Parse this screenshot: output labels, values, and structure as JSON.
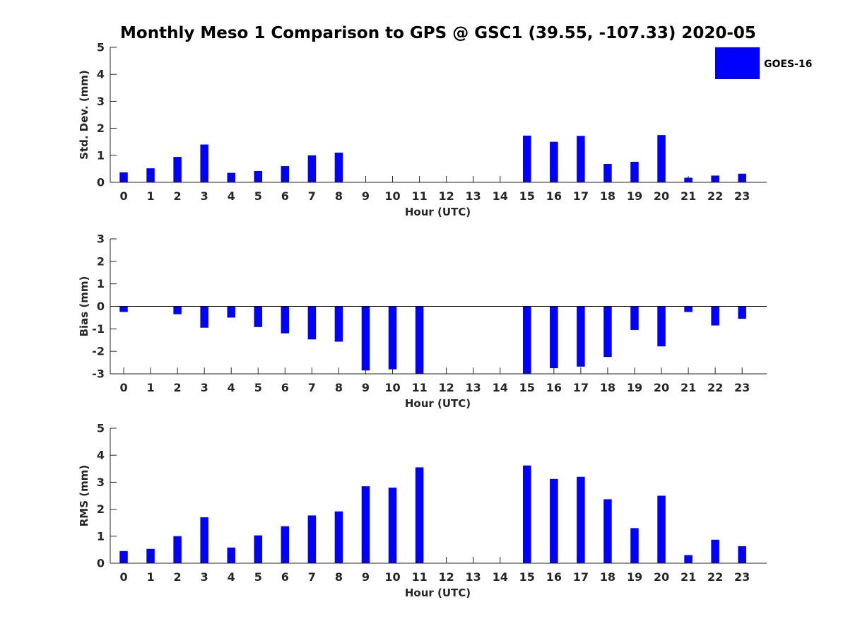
{
  "title": "Monthly Meso 1 Comparison to GPS @ GSC1 (39.55, -107.33) 2020-05",
  "legend": {
    "label": "GOES-16",
    "color": "#0000ff",
    "placement": "top-right"
  },
  "chart_data": [
    {
      "type": "bar",
      "xlabel": "Hour (UTC)",
      "ylabel": "Std. Dev. (mm)",
      "categories": [
        "0",
        "1",
        "2",
        "3",
        "4",
        "5",
        "6",
        "7",
        "8",
        "9",
        "10",
        "11",
        "12",
        "13",
        "14",
        "15",
        "16",
        "17",
        "18",
        "19",
        "20",
        "21",
        "22",
        "23"
      ],
      "ylim": [
        0,
        5
      ],
      "yticks": [
        "0",
        "1",
        "2",
        "3",
        "4",
        "5"
      ],
      "series": [
        {
          "name": "GOES-16",
          "color": "#0000ff",
          "values": [
            0.37,
            0.52,
            0.94,
            1.4,
            0.35,
            0.42,
            0.6,
            1.0,
            1.1,
            0,
            0,
            0,
            null,
            null,
            null,
            1.73,
            1.5,
            1.72,
            0.68,
            0.76,
            1.75,
            0.17,
            0.25,
            0.32
          ]
        }
      ],
      "grid": false
    },
    {
      "type": "bar",
      "xlabel": "Hour (UTC)",
      "ylabel": "Bias (mm)",
      "categories": [
        "0",
        "1",
        "2",
        "3",
        "4",
        "5",
        "6",
        "7",
        "8",
        "9",
        "10",
        "11",
        "12",
        "13",
        "14",
        "15",
        "16",
        "17",
        "18",
        "19",
        "20",
        "21",
        "22",
        "23"
      ],
      "ylim": [
        -3,
        3
      ],
      "yticks": [
        "-3",
        "-2",
        "-1",
        "0",
        "1",
        "2",
        "3"
      ],
      "series": [
        {
          "name": "GOES-16",
          "color": "#0000ff",
          "values": [
            -0.25,
            0,
            -0.35,
            -0.95,
            -0.5,
            -0.92,
            -1.2,
            -1.47,
            -1.57,
            -2.85,
            -2.8,
            -3.0,
            null,
            null,
            null,
            -3.0,
            -2.75,
            -2.68,
            -2.25,
            -1.05,
            -1.78,
            -0.25,
            -0.85,
            -0.55
          ]
        }
      ],
      "grid": false
    },
    {
      "type": "bar",
      "xlabel": "Hour (UTC)",
      "ylabel": "RMS (mm)",
      "categories": [
        "0",
        "1",
        "2",
        "3",
        "4",
        "5",
        "6",
        "7",
        "8",
        "9",
        "10",
        "11",
        "12",
        "13",
        "14",
        "15",
        "16",
        "17",
        "18",
        "19",
        "20",
        "21",
        "22",
        "23"
      ],
      "ylim": [
        0,
        5
      ],
      "yticks": [
        "0",
        "1",
        "2",
        "3",
        "4",
        "5"
      ],
      "series": [
        {
          "name": "GOES-16",
          "color": "#0000ff",
          "values": [
            0.45,
            0.53,
            1.0,
            1.7,
            0.58,
            1.03,
            1.37,
            1.77,
            1.92,
            2.85,
            2.8,
            3.55,
            null,
            null,
            null,
            3.62,
            3.12,
            3.2,
            2.37,
            1.3,
            2.5,
            0.3,
            0.87,
            0.63
          ]
        }
      ],
      "grid": false
    }
  ]
}
